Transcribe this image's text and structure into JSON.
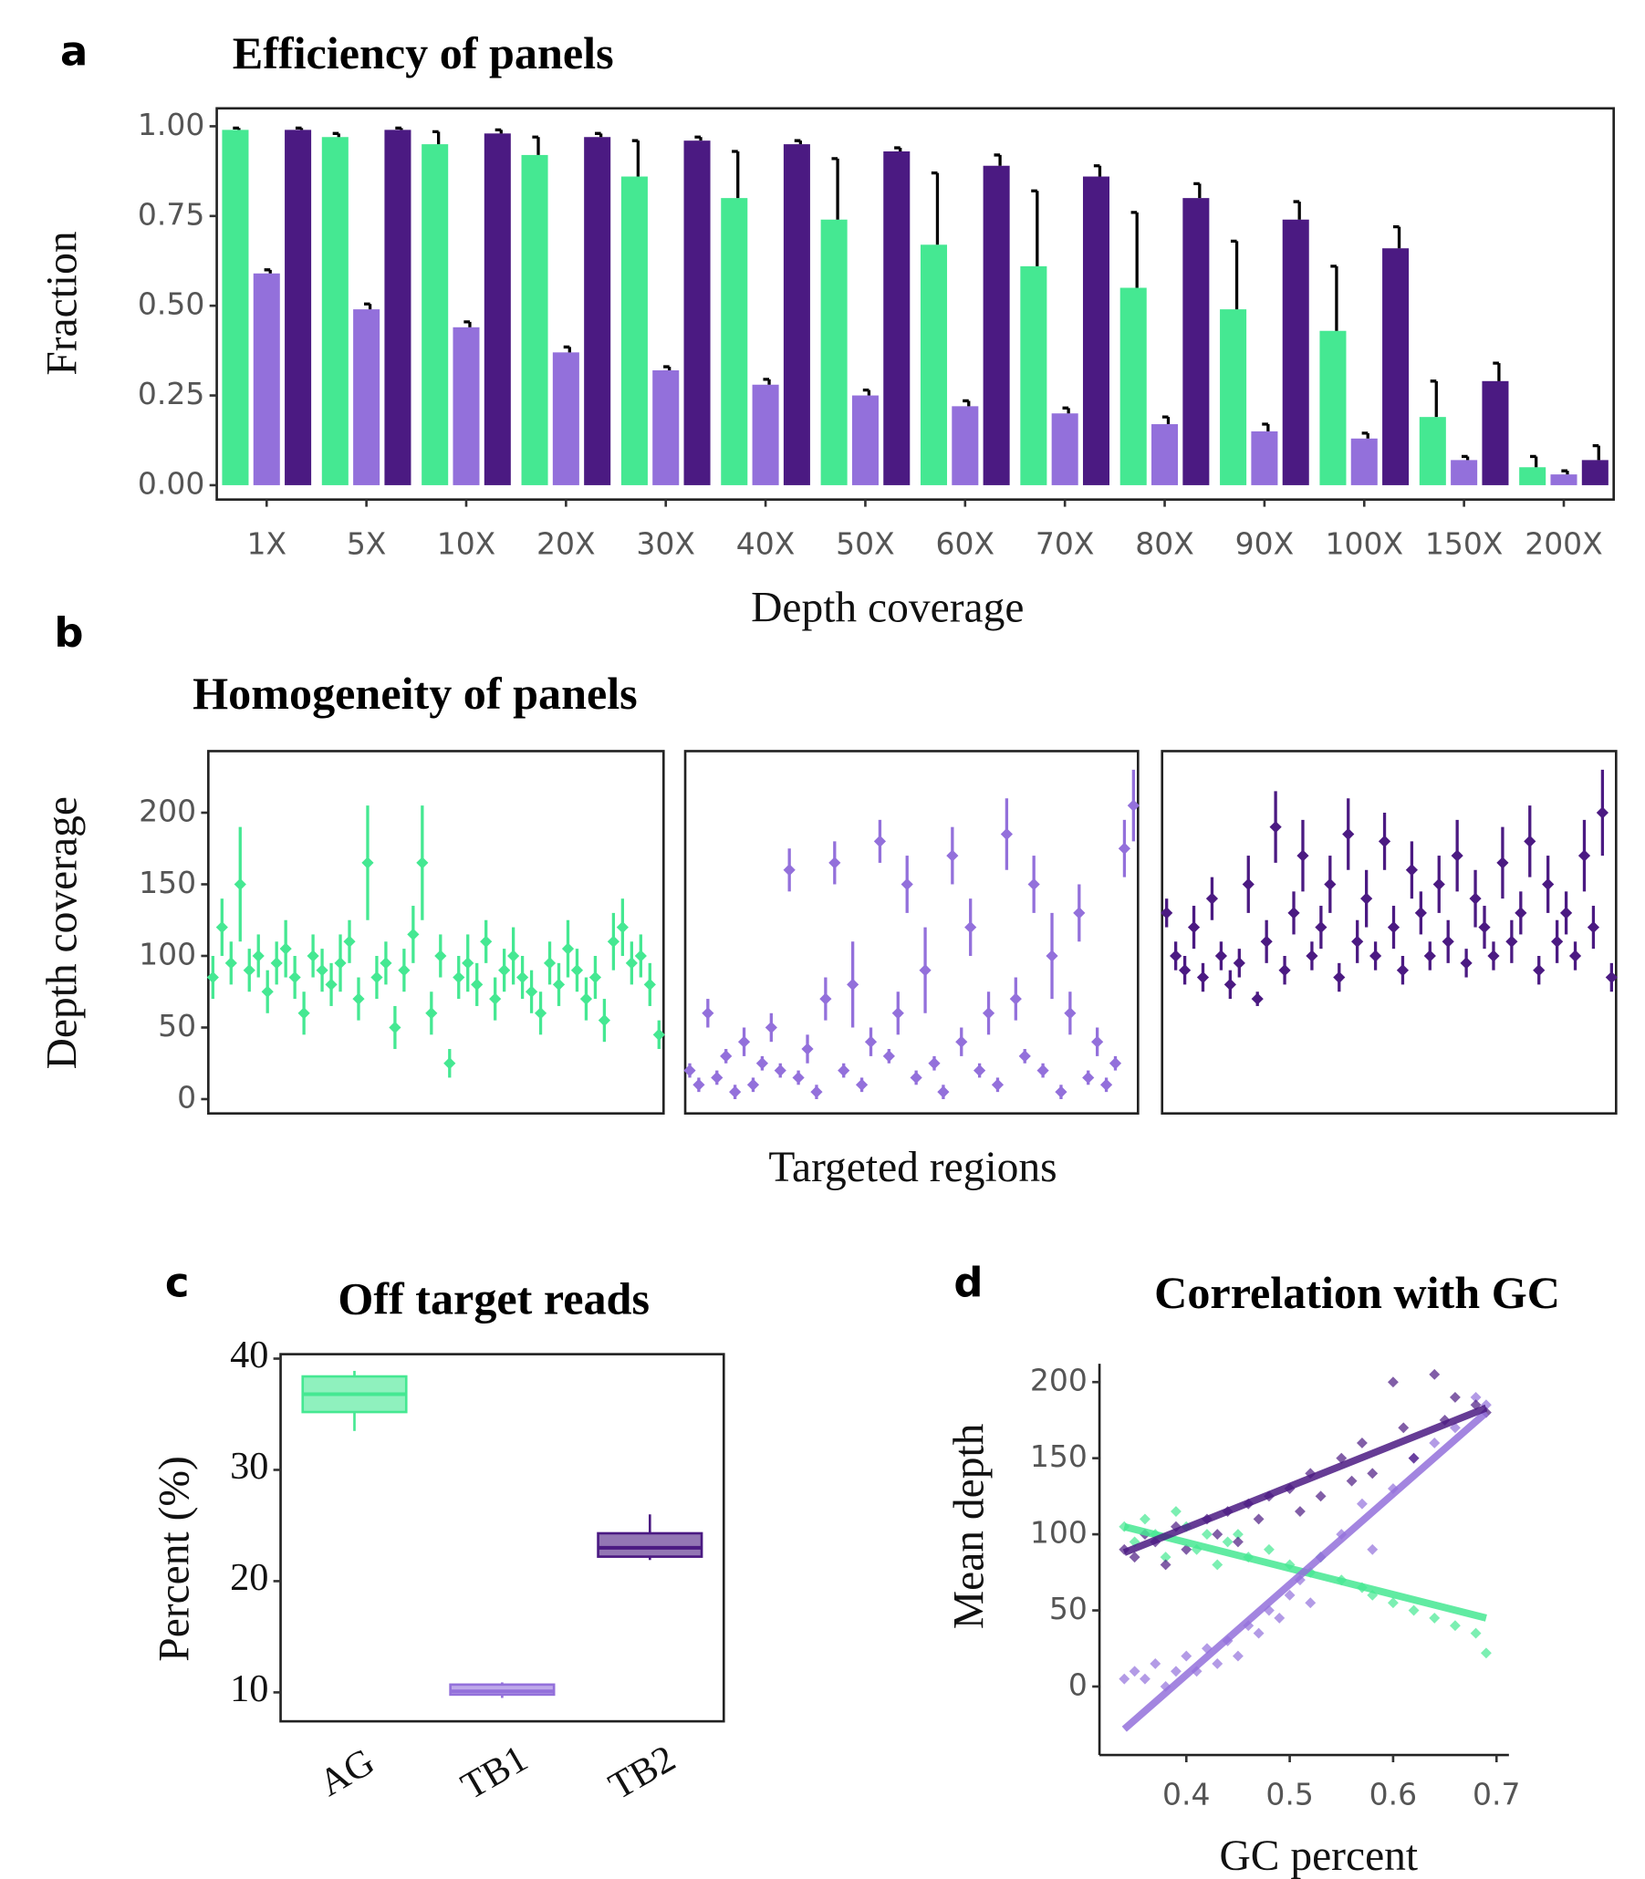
{
  "chart_data": [
    {
      "type": "bar",
      "panel": "a",
      "title": "Efficiency of panels",
      "x_label": "Depth coverage",
      "y_label": "Fraction",
      "categories": [
        "1X",
        "5X",
        "10X",
        "20X",
        "30X",
        "40X",
        "50X",
        "60X",
        "70X",
        "80X",
        "90X",
        "100X",
        "150X",
        "200X"
      ],
      "series": [
        {
          "color": "#45e892",
          "values": [
            0.99,
            0.97,
            0.95,
            0.92,
            0.86,
            0.8,
            0.74,
            0.67,
            0.61,
            0.55,
            0.49,
            0.43,
            0.19,
            0.05
          ],
          "errors": [
            0.005,
            0.01,
            0.035,
            0.05,
            0.1,
            0.13,
            0.17,
            0.2,
            0.21,
            0.21,
            0.19,
            0.18,
            0.1,
            0.03
          ]
        },
        {
          "color": "#9370db",
          "values": [
            0.59,
            0.49,
            0.44,
            0.37,
            0.32,
            0.28,
            0.25,
            0.22,
            0.2,
            0.17,
            0.15,
            0.13,
            0.07,
            0.03
          ],
          "errors": [
            0.01,
            0.015,
            0.015,
            0.015,
            0.01,
            0.015,
            0.015,
            0.015,
            0.015,
            0.02,
            0.02,
            0.015,
            0.01,
            0.01
          ]
        },
        {
          "color": "#4b1a82",
          "values": [
            0.99,
            0.99,
            0.98,
            0.97,
            0.96,
            0.95,
            0.93,
            0.89,
            0.86,
            0.8,
            0.74,
            0.66,
            0.29,
            0.07
          ],
          "errors": [
            0.005,
            0.005,
            0.01,
            0.01,
            0.01,
            0.01,
            0.01,
            0.03,
            0.03,
            0.04,
            0.05,
            0.06,
            0.05,
            0.04
          ]
        }
      ],
      "ylim": [
        -0.04,
        1.05
      ],
      "yticks": [
        {
          "value": 0,
          "label": "0.00"
        },
        {
          "value": 0.25,
          "label": "0.25"
        },
        {
          "value": 0.5,
          "label": "0.50"
        },
        {
          "value": 0.75,
          "label": "0.75"
        },
        {
          "value": 1,
          "label": "1.00"
        }
      ]
    },
    {
      "type": "scatter",
      "panel": "b",
      "title": "Homogeneity of panels",
      "x_label": "Targeted regions",
      "y_label": "Depth coverage",
      "series": [
        {
          "color": "#45e892",
          "values": [
            85,
            120,
            95,
            150,
            90,
            100,
            75,
            95,
            105,
            85,
            60,
            100,
            90,
            80,
            95,
            110,
            70,
            165,
            85,
            95,
            50,
            90,
            115,
            165,
            60,
            100,
            25,
            85,
            95,
            80,
            110,
            70,
            90,
            100,
            85,
            75,
            60,
            95,
            80,
            105,
            90,
            70,
            85,
            55,
            110,
            120,
            95,
            100,
            80,
            45
          ],
          "errors": [
            15,
            20,
            15,
            40,
            15,
            15,
            15,
            15,
            20,
            15,
            15,
            15,
            15,
            15,
            20,
            15,
            15,
            40,
            15,
            15,
            15,
            15,
            20,
            40,
            15,
            15,
            10,
            15,
            20,
            15,
            15,
            15,
            15,
            20,
            15,
            15,
            15,
            15,
            15,
            20,
            15,
            15,
            15,
            15,
            20,
            20,
            15,
            15,
            15,
            10
          ]
        },
        {
          "color": "#9370db",
          "values": [
            20,
            10,
            60,
            15,
            30,
            5,
            40,
            10,
            25,
            50,
            20,
            160,
            15,
            35,
            5,
            70,
            165,
            20,
            80,
            10,
            40,
            180,
            30,
            60,
            150,
            15,
            90,
            25,
            5,
            170,
            40,
            120,
            20,
            60,
            10,
            185,
            70,
            30,
            150,
            20,
            100,
            5,
            60,
            130,
            15,
            40,
            10,
            25,
            175,
            205
          ],
          "errors": [
            5,
            5,
            10,
            5,
            5,
            5,
            10,
            5,
            5,
            10,
            5,
            15,
            5,
            10,
            5,
            15,
            15,
            5,
            30,
            5,
            10,
            15,
            5,
            15,
            20,
            5,
            30,
            5,
            5,
            20,
            10,
            20,
            5,
            15,
            5,
            25,
            15,
            5,
            20,
            5,
            30,
            5,
            15,
            20,
            5,
            10,
            5,
            5,
            20,
            25
          ]
        },
        {
          "color": "#4b1a82",
          "values": [
            130,
            100,
            90,
            120,
            85,
            140,
            100,
            80,
            95,
            150,
            70,
            110,
            190,
            90,
            130,
            170,
            100,
            120,
            150,
            85,
            185,
            110,
            140,
            100,
            180,
            120,
            90,
            160,
            130,
            100,
            150,
            110,
            170,
            95,
            140,
            120,
            100,
            165,
            110,
            130,
            180,
            90,
            150,
            110,
            130,
            100,
            170,
            120,
            200,
            85
          ],
          "errors": [
            10,
            10,
            10,
            15,
            10,
            15,
            10,
            10,
            10,
            20,
            5,
            15,
            25,
            10,
            15,
            25,
            10,
            15,
            20,
            10,
            25,
            15,
            20,
            10,
            20,
            15,
            10,
            20,
            15,
            10,
            20,
            15,
            25,
            10,
            20,
            15,
            10,
            25,
            15,
            15,
            25,
            10,
            20,
            15,
            15,
            10,
            25,
            15,
            30,
            10
          ]
        }
      ],
      "ylim": [
        -10,
        243
      ],
      "yticks": [
        0,
        50,
        100,
        150,
        200
      ]
    },
    {
      "type": "box",
      "panel": "c",
      "title": "Off target reads",
      "y_label": "Percent (%)",
      "categories": [
        "AG",
        "TB1",
        "TB2"
      ],
      "colors": [
        "#45e892",
        "#9370db",
        "#4b1a82"
      ],
      "boxes": [
        {
          "min": 33.5,
          "q1": 35.2,
          "median": 36.8,
          "q3": 38.4,
          "max": 38.9
        },
        {
          "min": 9.5,
          "q1": 9.8,
          "median": 10.1,
          "q3": 10.7,
          "max": 10.9
        },
        {
          "min": 21.9,
          "q1": 22.2,
          "median": 23.0,
          "q3": 24.3,
          "max": 26.0
        }
      ],
      "ylim": [
        7.4,
        40.4
      ],
      "yticks": [
        10,
        20,
        30,
        40
      ]
    },
    {
      "type": "scatter",
      "panel": "d",
      "title": "Correlation with GC",
      "x_label": "GC percent",
      "y_label": "Mean depth",
      "series": [
        {
          "color": "#45e892",
          "x": [
            0.34,
            0.35,
            0.36,
            0.37,
            0.38,
            0.39,
            0.4,
            0.41,
            0.42,
            0.43,
            0.44,
            0.45,
            0.46,
            0.48,
            0.5,
            0.52,
            0.53,
            0.55,
            0.57,
            0.58,
            0.6,
            0.62,
            0.64,
            0.66,
            0.68,
            0.69
          ],
          "values": [
            105,
            95,
            110,
            100,
            85,
            115,
            105,
            90,
            100,
            80,
            95,
            100,
            85,
            90,
            80,
            75,
            85,
            70,
            65,
            60,
            55,
            50,
            45,
            40,
            35,
            22
          ]
        },
        {
          "color": "#9370db",
          "x": [
            0.34,
            0.35,
            0.36,
            0.37,
            0.38,
            0.39,
            0.4,
            0.41,
            0.42,
            0.43,
            0.44,
            0.45,
            0.46,
            0.47,
            0.48,
            0.49,
            0.5,
            0.51,
            0.52,
            0.53,
            0.55,
            0.57,
            0.58,
            0.6,
            0.62,
            0.64,
            0.66,
            0.68,
            0.69
          ],
          "values": [
            5,
            10,
            5,
            15,
            0,
            10,
            20,
            10,
            25,
            15,
            30,
            20,
            40,
            35,
            50,
            45,
            60,
            70,
            55,
            85,
            100,
            120,
            90,
            130,
            150,
            160,
            170,
            190,
            185
          ]
        },
        {
          "color": "#4b1a82",
          "x": [
            0.34,
            0.35,
            0.36,
            0.37,
            0.38,
            0.39,
            0.4,
            0.42,
            0.43,
            0.44,
            0.45,
            0.46,
            0.47,
            0.48,
            0.5,
            0.51,
            0.52,
            0.53,
            0.55,
            0.56,
            0.57,
            0.58,
            0.6,
            0.61,
            0.62,
            0.64,
            0.65,
            0.66,
            0.68,
            0.69
          ],
          "values": [
            90,
            85,
            100,
            95,
            80,
            105,
            90,
            110,
            100,
            115,
            95,
            120,
            110,
            125,
            130,
            115,
            140,
            125,
            150,
            135,
            160,
            140,
            200,
            170,
            150,
            205,
            175,
            190,
            185,
            180
          ]
        }
      ],
      "lines": [
        {
          "color": "#45e892",
          "x": [
            0.34,
            0.69
          ],
          "values": [
            105,
            45
          ]
        },
        {
          "color": "#9370db",
          "x": [
            0.34,
            0.69
          ],
          "values": [
            -28,
            180
          ]
        },
        {
          "color": "#4b1a82",
          "x": [
            0.34,
            0.69
          ],
          "values": [
            88,
            183
          ]
        }
      ],
      "xlim": [
        0.316,
        0.712
      ],
      "xticks": [
        0.4,
        0.5,
        0.6,
        0.7
      ],
      "ylim": [
        -45,
        212
      ],
      "yticks": [
        0,
        50,
        100,
        150,
        200
      ]
    }
  ]
}
